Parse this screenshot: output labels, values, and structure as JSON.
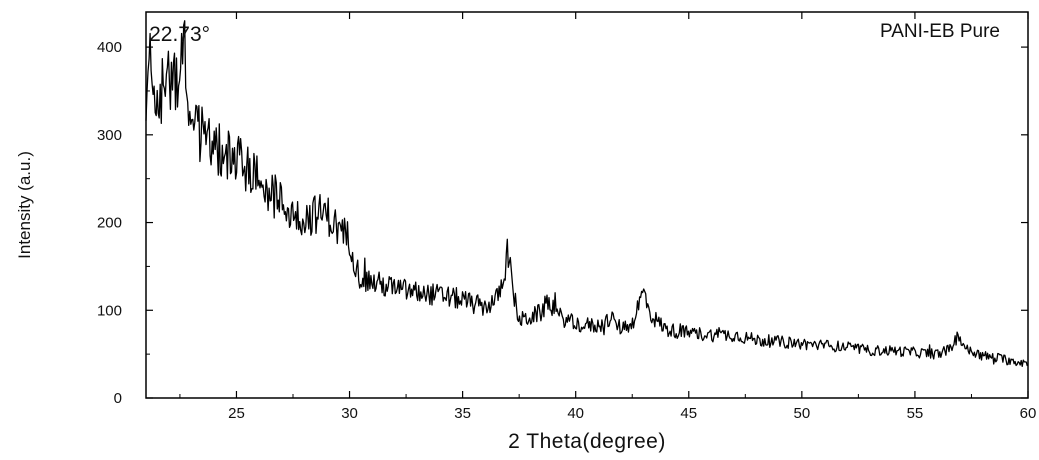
{
  "chart_data": {
    "type": "line",
    "title": "",
    "xlabel": "2 Theta(degree)",
    "ylabel": "Intensity (a.u.)",
    "xlim": [
      21,
      60
    ],
    "ylim": [
      0,
      440
    ],
    "xticks": [
      25,
      30,
      35,
      40,
      45,
      50,
      55,
      60
    ],
    "yticks": [
      0,
      100,
      200,
      300,
      400
    ],
    "grid": false,
    "legend_position": "top-right",
    "series": [
      {
        "name": "PANI-EB Pure",
        "color": "#000000",
        "points": [
          [
            21.0,
            355
          ],
          [
            21.5,
            345
          ],
          [
            22.0,
            360
          ],
          [
            22.4,
            370
          ],
          [
            22.73,
            395
          ],
          [
            23.0,
            310
          ],
          [
            23.5,
            300
          ],
          [
            24.0,
            285
          ],
          [
            24.5,
            278
          ],
          [
            25.0,
            272
          ],
          [
            25.5,
            262
          ],
          [
            26.0,
            250
          ],
          [
            26.5,
            236
          ],
          [
            27.0,
            222
          ],
          [
            27.5,
            210
          ],
          [
            28.0,
            205
          ],
          [
            28.5,
            210
          ],
          [
            29.0,
            210
          ],
          [
            29.5,
            192
          ],
          [
            30.0,
            182
          ],
          [
            30.4,
            140
          ],
          [
            31.0,
            132
          ],
          [
            32.0,
            125
          ],
          [
            33.0,
            120
          ],
          [
            34.0,
            117
          ],
          [
            35.0,
            112
          ],
          [
            35.5,
            107
          ],
          [
            36.0,
            104
          ],
          [
            36.5,
            112
          ],
          [
            36.8,
            135
          ],
          [
            37.0,
            170
          ],
          [
            37.2,
            125
          ],
          [
            37.5,
            88
          ],
          [
            38.0,
            92
          ],
          [
            38.5,
            98
          ],
          [
            38.8,
            112
          ],
          [
            39.2,
            94
          ],
          [
            40.0,
            84
          ],
          [
            41.0,
            82
          ],
          [
            41.5,
            90
          ],
          [
            42.0,
            80
          ],
          [
            42.5,
            85
          ],
          [
            43.0,
            122
          ],
          [
            43.3,
            95
          ],
          [
            44.0,
            78
          ],
          [
            45.0,
            74
          ],
          [
            46.0,
            72
          ],
          [
            47.0,
            72
          ],
          [
            48.0,
            66
          ],
          [
            49.0,
            64
          ],
          [
            50.0,
            62
          ],
          [
            51.0,
            60
          ],
          [
            52.0,
            58
          ],
          [
            53.0,
            54
          ],
          [
            54.0,
            54
          ],
          [
            55.0,
            52
          ],
          [
            56.0,
            50
          ],
          [
            56.6,
            56
          ],
          [
            56.9,
            72
          ],
          [
            57.3,
            55
          ],
          [
            58.0,
            48
          ],
          [
            59.0,
            44
          ],
          [
            60.0,
            40
          ]
        ]
      }
    ],
    "annotations": [
      {
        "text": "22.73°",
        "x": 22.73,
        "y": 400
      }
    ]
  }
}
